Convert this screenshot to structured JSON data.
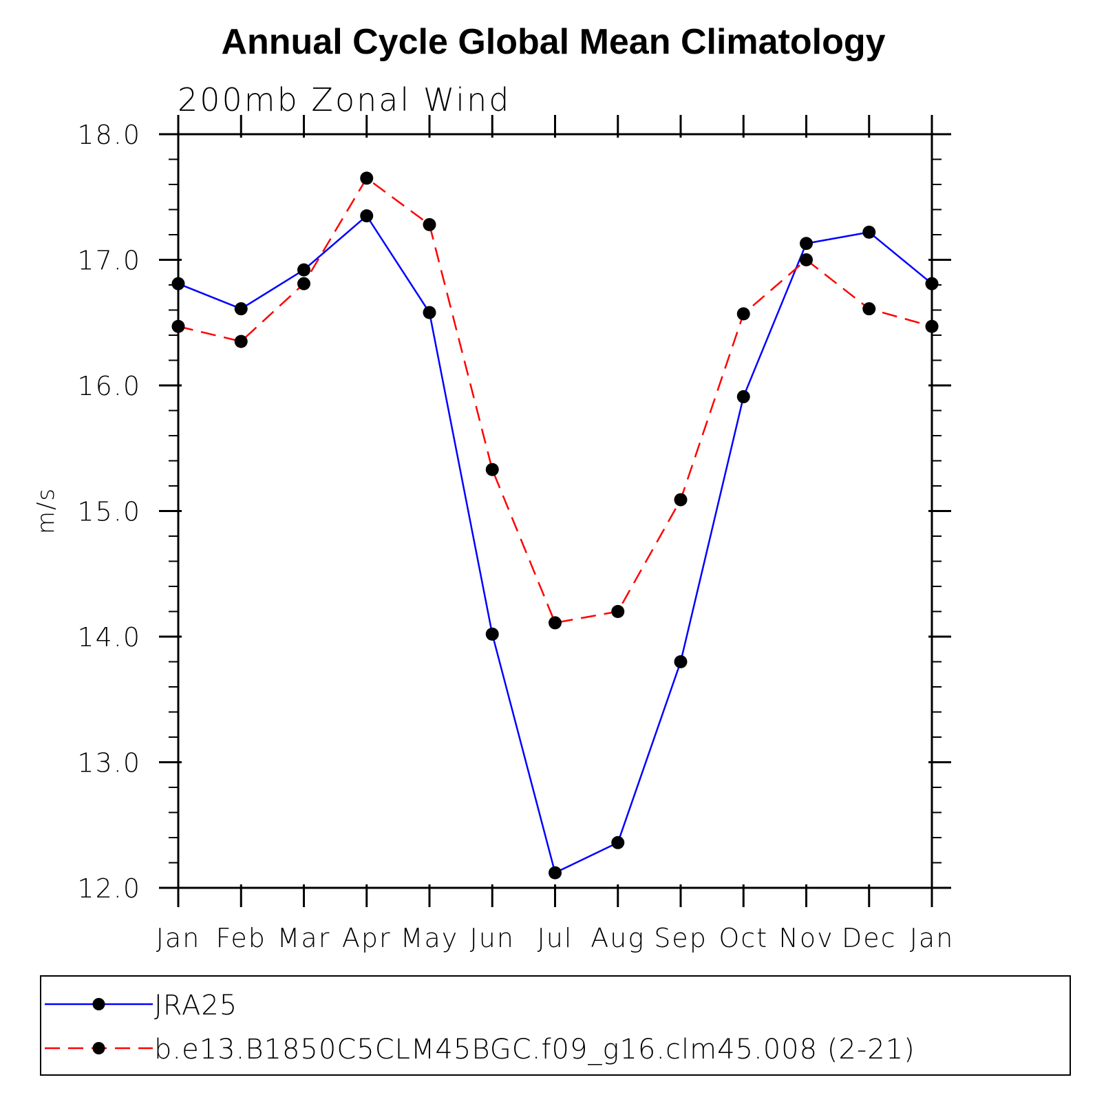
{
  "chart_data": {
    "type": "line",
    "title": "Annual Cycle Global Mean Climatology",
    "subtitle": "200mb Zonal Wind",
    "xlabel": "",
    "ylabel": "m/s",
    "categories": [
      "Jan",
      "Feb",
      "Mar",
      "Apr",
      "May",
      "Jun",
      "Jul",
      "Aug",
      "Sep",
      "Oct",
      "Nov",
      "Dec",
      "Jan"
    ],
    "ylim": [
      12.0,
      18.0
    ],
    "y_ticks": [
      "12.0",
      "13.0",
      "14.0",
      "15.0",
      "16.0",
      "17.0",
      "18.0"
    ],
    "grid": false,
    "legend_position": "bottom",
    "series": [
      {
        "name": "JRA25",
        "color": "#0000ff",
        "style": "solid",
        "values": [
          16.81,
          16.61,
          16.92,
          17.35,
          16.58,
          14.02,
          12.12,
          12.36,
          13.8,
          15.91,
          17.13,
          17.22,
          16.81
        ]
      },
      {
        "name": "b.e13.B1850C5CLM45BGC.f09_g16.clm45.008 (2-21)",
        "color": "#ff0000",
        "style": "dashed",
        "values": [
          16.47,
          16.35,
          16.81,
          17.65,
          17.28,
          15.33,
          14.11,
          14.2,
          15.09,
          16.57,
          17.0,
          16.61,
          16.47
        ]
      }
    ]
  }
}
